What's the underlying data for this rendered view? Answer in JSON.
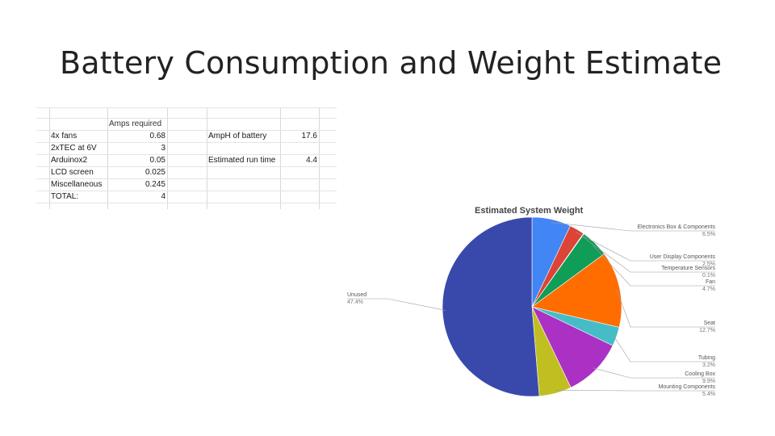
{
  "slide": {
    "title": "Battery Consumption and Weight Estimate"
  },
  "sheet": {
    "header": "Amps required",
    "rows": [
      {
        "label": "4x fans",
        "value": "0.68"
      },
      {
        "label": "2xTEC at 6V",
        "value": "3"
      },
      {
        "label": "Arduinox2",
        "value": "0.05"
      },
      {
        "label": "LCD screen",
        "value": "0.025"
      },
      {
        "label": "Miscellaneous",
        "value": "0.245"
      },
      {
        "label": "TOTAL:",
        "value": "4"
      }
    ],
    "side": [
      {
        "label": "AmpH of battery",
        "value": "17.6"
      },
      {
        "label": "Estimated run time",
        "value": "4.4"
      }
    ]
  },
  "chart_data": {
    "type": "pie",
    "title": "Estimated System Weight",
    "slices": [
      {
        "name": "Electronics Box & Components",
        "label": "6.5%",
        "value": 6.5,
        "color": "#4285f4"
      },
      {
        "name": "User Display Components",
        "label": "2.5%",
        "value": 2.5,
        "color": "#db4437"
      },
      {
        "name": "Temperature Sensors",
        "label": "0.1%",
        "value": 0.1,
        "color": "#f4b400"
      },
      {
        "name": "Fan",
        "label": "4.7%",
        "value": 4.7,
        "color": "#0f9d58"
      },
      {
        "name": "Seat",
        "label": "12.7%",
        "value": 12.7,
        "color": "#ff6d00"
      },
      {
        "name": "Tubing",
        "label": "3.2%",
        "value": 3.2,
        "color": "#46bdc6"
      },
      {
        "name": "Cooling Box",
        "label": "9.9%",
        "value": 9.9,
        "color": "#ab30c4"
      },
      {
        "name": "Mounting Components",
        "label": "5.4%",
        "value": 5.4,
        "color": "#c0bf21"
      },
      {
        "name": "Unused",
        "label": "47.4%",
        "value": 47.4,
        "color": "#3949ab"
      }
    ]
  }
}
